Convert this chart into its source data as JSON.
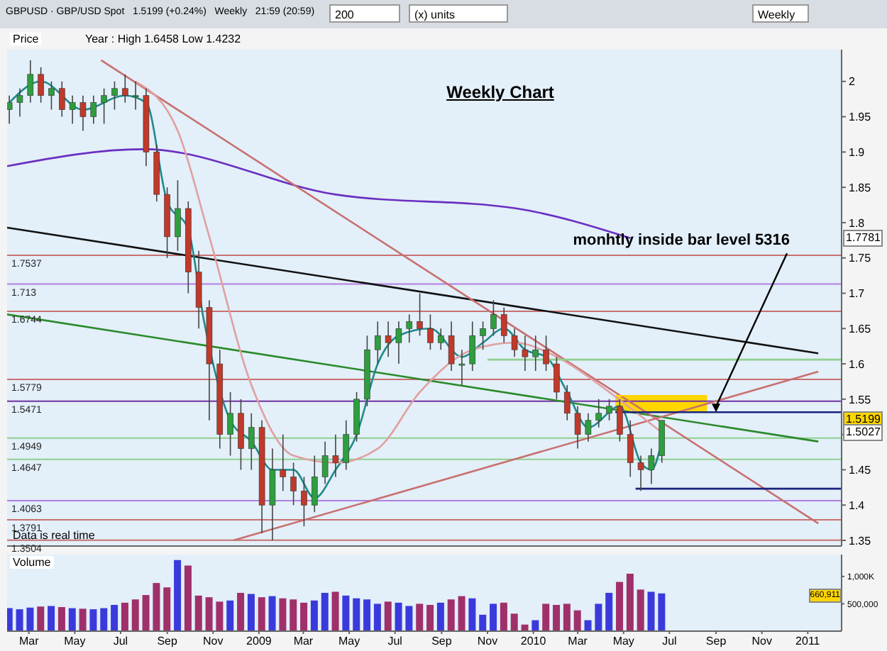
{
  "chart_data": [
    {
      "type": "candlestick",
      "title": "Weekly Chart",
      "subtitle": "GBPUSD · GBP/USD Spot   1.5199 (+0.24%)   Weekly   21:59 (20:59)",
      "x": [
        "2008-02-04",
        "2008-02-18",
        "2008-03-03",
        "2008-03-17",
        "2008-03-31",
        "2008-04-14",
        "2008-04-28",
        "2008-05-12",
        "2008-05-26",
        "2008-06-09",
        "2008-06-23",
        "2008-07-07",
        "2008-07-21",
        "2008-08-04",
        "2008-08-18",
        "2008-09-01",
        "2008-09-15",
        "2008-09-29",
        "2008-10-13",
        "2008-10-27",
        "2008-11-10",
        "2008-11-24",
        "2008-12-08",
        "2008-12-22",
        "2009-01-05",
        "2009-01-19",
        "2009-02-02",
        "2009-02-16",
        "2009-03-02",
        "2009-03-16",
        "2009-03-30",
        "2009-04-13",
        "2009-04-27",
        "2009-05-11",
        "2009-05-25",
        "2009-06-08",
        "2009-06-22",
        "2009-07-06",
        "2009-07-20",
        "2009-08-03",
        "2009-08-17",
        "2009-08-31",
        "2009-09-14",
        "2009-09-28",
        "2009-10-12",
        "2009-10-26",
        "2009-11-09",
        "2009-11-23",
        "2009-12-07",
        "2009-12-21",
        "2010-01-04",
        "2010-01-18",
        "2010-02-01",
        "2010-02-15",
        "2010-03-01",
        "2010-03-15",
        "2010-03-29",
        "2010-04-12",
        "2010-04-26",
        "2010-05-10",
        "2010-05-24",
        "2010-06-07",
        "2010-06-21"
      ],
      "ohlc": [
        [
          1.96,
          1.98,
          1.94,
          1.97
        ],
        [
          1.97,
          1.99,
          1.95,
          1.98
        ],
        [
          1.98,
          2.03,
          1.97,
          2.01
        ],
        [
          2.01,
          2.02,
          1.97,
          1.98
        ],
        [
          1.98,
          2.0,
          1.96,
          1.99
        ],
        [
          1.99,
          2.0,
          1.95,
          1.96
        ],
        [
          1.96,
          1.98,
          1.94,
          1.97
        ],
        [
          1.97,
          1.98,
          1.93,
          1.95
        ],
        [
          1.95,
          1.98,
          1.94,
          1.97
        ],
        [
          1.97,
          1.99,
          1.94,
          1.98
        ],
        [
          1.98,
          2.0,
          1.96,
          1.99
        ],
        [
          1.99,
          2.01,
          1.97,
          1.98
        ],
        [
          1.98,
          2.0,
          1.96,
          1.98
        ],
        [
          1.98,
          1.99,
          1.88,
          1.9
        ],
        [
          1.9,
          1.91,
          1.83,
          1.84
        ],
        [
          1.84,
          1.85,
          1.75,
          1.78
        ],
        [
          1.78,
          1.86,
          1.76,
          1.82
        ],
        [
          1.82,
          1.83,
          1.7,
          1.73
        ],
        [
          1.73,
          1.76,
          1.65,
          1.68
        ],
        [
          1.68,
          1.69,
          1.52,
          1.6
        ],
        [
          1.6,
          1.62,
          1.48,
          1.5
        ],
        [
          1.5,
          1.56,
          1.47,
          1.53
        ],
        [
          1.53,
          1.55,
          1.45,
          1.48
        ],
        [
          1.48,
          1.53,
          1.45,
          1.51
        ],
        [
          1.51,
          1.52,
          1.36,
          1.4
        ],
        [
          1.4,
          1.48,
          1.35,
          1.45
        ],
        [
          1.45,
          1.5,
          1.42,
          1.44
        ],
        [
          1.44,
          1.46,
          1.4,
          1.42
        ],
        [
          1.42,
          1.44,
          1.37,
          1.4
        ],
        [
          1.4,
          1.47,
          1.39,
          1.44
        ],
        [
          1.44,
          1.49,
          1.43,
          1.47
        ],
        [
          1.47,
          1.5,
          1.44,
          1.46
        ],
        [
          1.46,
          1.52,
          1.45,
          1.5
        ],
        [
          1.5,
          1.56,
          1.49,
          1.55
        ],
        [
          1.55,
          1.64,
          1.54,
          1.62
        ],
        [
          1.62,
          1.66,
          1.6,
          1.64
        ],
        [
          1.64,
          1.66,
          1.61,
          1.63
        ],
        [
          1.63,
          1.66,
          1.6,
          1.65
        ],
        [
          1.65,
          1.67,
          1.63,
          1.66
        ],
        [
          1.66,
          1.7,
          1.64,
          1.65
        ],
        [
          1.65,
          1.67,
          1.62,
          1.63
        ],
        [
          1.63,
          1.65,
          1.62,
          1.64
        ],
        [
          1.64,
          1.66,
          1.59,
          1.6
        ],
        [
          1.6,
          1.62,
          1.57,
          1.6
        ],
        [
          1.6,
          1.66,
          1.59,
          1.64
        ],
        [
          1.64,
          1.66,
          1.62,
          1.65
        ],
        [
          1.65,
          1.69,
          1.64,
          1.67
        ],
        [
          1.67,
          1.68,
          1.63,
          1.64
        ],
        [
          1.64,
          1.65,
          1.61,
          1.62
        ],
        [
          1.62,
          1.64,
          1.59,
          1.61
        ],
        [
          1.61,
          1.64,
          1.59,
          1.62
        ],
        [
          1.62,
          1.64,
          1.59,
          1.6
        ],
        [
          1.6,
          1.61,
          1.55,
          1.56
        ],
        [
          1.56,
          1.57,
          1.52,
          1.53
        ],
        [
          1.53,
          1.54,
          1.48,
          1.5
        ],
        [
          1.5,
          1.53,
          1.49,
          1.52
        ],
        [
          1.52,
          1.55,
          1.51,
          1.53
        ],
        [
          1.53,
          1.55,
          1.52,
          1.54
        ],
        [
          1.54,
          1.55,
          1.49,
          1.5
        ],
        [
          1.5,
          1.52,
          1.44,
          1.46
        ],
        [
          1.46,
          1.47,
          1.42,
          1.45
        ],
        [
          1.45,
          1.48,
          1.43,
          1.47
        ],
        [
          1.47,
          1.52,
          1.46,
          1.52
        ]
      ],
      "series": [
        {
          "type": "line",
          "color": "#6a2fc0",
          "x": [
            "2008-02-01",
            "2008-08-01",
            "2009-04-12",
            "2009-12-10",
            "2010-05-10"
          ],
          "values": [
            1.88,
            1.904,
            1.84,
            1.82,
            1.7781
          ]
        },
        {
          "type": "line",
          "color": "#111111",
          "x": [
            "2008-02-01",
            "2011-01-15"
          ],
          "values": [
            1.793,
            1.615
          ]
        },
        {
          "type": "line",
          "color": "#2a8a2a",
          "x": [
            "2008-02-01",
            "2011-01-15"
          ],
          "values": [
            1.67,
            1.49
          ]
        },
        {
          "type": "line",
          "color": "#c87070",
          "x": [
            "2008-06-05",
            "2011-01-15"
          ],
          "values": [
            2.03,
            1.374
          ]
        },
        {
          "type": "line",
          "color": "#c87070",
          "x": [
            "2008-11-28",
            "2011-01-15"
          ],
          "values": [
            1.35,
            1.589
          ]
        },
        {
          "type": "line",
          "color": "#1f8a8a",
          "x": [
            "2008-02-04",
            "2008-03-17",
            "2008-05-12",
            "2008-07-07",
            "2008-08-04",
            "2008-09-01",
            "2008-09-29",
            "2008-10-20",
            "2008-11-24",
            "2008-12-22",
            "2009-01-19",
            "2009-02-16",
            "2009-03-16",
            "2009-04-13",
            "2009-05-11",
            "2009-06-08",
            "2009-07-06",
            "2009-08-17",
            "2009-09-28",
            "2009-10-26",
            "2009-11-23",
            "2009-12-21",
            "2010-01-18",
            "2010-02-15",
            "2010-03-15",
            "2010-04-26",
            "2010-05-24",
            "2010-06-07",
            "2010-06-21"
          ],
          "values": [
            1.97,
            2.0,
            1.96,
            1.98,
            1.97,
            1.83,
            1.79,
            1.66,
            1.52,
            1.49,
            1.45,
            1.45,
            1.41,
            1.45,
            1.5,
            1.6,
            1.64,
            1.65,
            1.61,
            1.63,
            1.65,
            1.62,
            1.61,
            1.56,
            1.51,
            1.54,
            1.46,
            1.45,
            1.49
          ]
        },
        {
          "type": "line",
          "color": "#e0a0a0",
          "x": [
            "2008-07-21",
            "2008-09-15",
            "2008-10-27",
            "2008-12-22",
            "2009-02-16",
            "2009-04-13",
            "2009-06-08",
            "2009-08-03",
            "2009-10-12",
            "2009-12-07",
            "2010-02-01",
            "2010-04-12",
            "2010-06-21"
          ],
          "values": [
            2.0,
            1.93,
            1.78,
            1.57,
            1.47,
            1.46,
            1.48,
            1.56,
            1.62,
            1.63,
            1.61,
            1.56,
            1.5027
          ]
        },
        {
          "type": "line",
          "color": "#90d090",
          "x": [
            "2009-11-01",
            "2011-02-15"
          ],
          "values": [
            1.606,
            1.606
          ]
        },
        {
          "type": "line",
          "color": "#1a237e",
          "x": [
            "2010-04-20",
            "2011-02-15"
          ],
          "values": [
            1.5316,
            1.5316
          ]
        },
        {
          "type": "line",
          "color": "#1a237e",
          "x": [
            "2010-05-17",
            "2011-02-15"
          ],
          "values": [
            1.4232,
            1.4232
          ]
        },
        {
          "type": "line",
          "color": "#ffd600",
          "x": [
            "2010-04-20",
            "2010-08-20"
          ],
          "values": [
            1.555,
            1.555
          ],
          "lower": [
            1.532,
            1.532
          ],
          "upper": [
            1.555,
            1.555
          ]
        }
      ],
      "ref_lines": [
        {
          "axis": "y",
          "value": 1.7537,
          "label": "1.7537",
          "color": "#c87070"
        },
        {
          "axis": "y",
          "value": 1.713,
          "label": "1.713",
          "color": "#b080e0"
        },
        {
          "axis": "y",
          "value": 1.6744,
          "label": "1.6744",
          "color": "#c87070"
        },
        {
          "axis": "y",
          "value": 1.5779,
          "label": "1.5779",
          "color": "#c87070"
        },
        {
          "axis": "y",
          "value": 1.5471,
          "label": "1.5471",
          "color": "#7030a0"
        },
        {
          "axis": "y",
          "value": 1.4949,
          "label": "1.4949",
          "color": "#90d090"
        },
        {
          "axis": "y",
          "value": 1.4647,
          "label": "1.4647",
          "color": "#90d090"
        },
        {
          "axis": "y",
          "value": 1.4063,
          "label": "1.4063",
          "color": "#b080e0"
        },
        {
          "axis": "y",
          "value": 1.3791,
          "label": "1.3791",
          "color": "#c87070"
        },
        {
          "axis": "y",
          "value": 1.3504,
          "label": "1.3504",
          "color": "#c87070"
        }
      ],
      "annotations": [
        "Price",
        "Year : High 1.6458 Low 1.4232",
        "Data is real time",
        "200",
        "(x) units",
        "Weekly",
        {
          "text": "monhtly inside bar level 5316",
          "x": "2010-09-01",
          "y": 1.5316
        },
        {
          "text": "1.7781",
          "y": 1.7781
        },
        {
          "text": "1.5199",
          "y": 1.5199
        },
        {
          "text": "1.5027",
          "y": 1.5027
        }
      ],
      "xlim": [
        "2008-02-01",
        "2011-02-15"
      ],
      "ylim": [
        1.342,
        2.045
      ],
      "xticks": [
        "2008-03-01",
        "2008-05-01",
        "2008-07-01",
        "2008-09-01",
        "2008-11-01",
        "2009-01-01",
        "2009-03-01",
        "2009-05-01",
        "2009-07-01",
        "2009-09-01",
        "2009-11-01",
        "2010-01-01",
        "2010-03-01",
        "2010-05-01",
        "2010-07-01",
        "2010-09-01",
        "2010-11-01",
        "2011-01-01"
      ],
      "yticks": [
        1.35,
        1.4,
        1.45,
        {
          "value": 1.5,
          "label": null
        },
        1.55,
        1.6,
        1.65,
        1.7,
        1.75,
        1.8,
        1.85,
        1.9,
        1.95,
        2
      ],
      "tick_labels": "y"
    },
    {
      "type": "bar",
      "title": "Volume",
      "x": [
        "2008-02-04",
        "2008-02-18",
        "2008-03-03",
        "2008-03-17",
        "2008-03-31",
        "2008-04-14",
        "2008-04-28",
        "2008-05-12",
        "2008-05-26",
        "2008-06-09",
        "2008-06-23",
        "2008-07-07",
        "2008-07-21",
        "2008-08-04",
        "2008-08-18",
        "2008-09-01",
        "2008-09-15",
        "2008-09-29",
        "2008-10-13",
        "2008-10-27",
        "2008-11-10",
        "2008-11-24",
        "2008-12-08",
        "2008-12-22",
        "2009-01-05",
        "2009-01-19",
        "2009-02-02",
        "2009-02-16",
        "2009-03-02",
        "2009-03-16",
        "2009-03-30",
        "2009-04-13",
        "2009-04-27",
        "2009-05-11",
        "2009-05-25",
        "2009-06-08",
        "2009-06-22",
        "2009-07-06",
        "2009-07-20",
        "2009-08-03",
        "2009-08-17",
        "2009-08-31",
        "2009-09-14",
        "2009-09-28",
        "2009-10-12",
        "2009-10-26",
        "2009-11-09",
        "2009-11-23",
        "2009-12-07",
        "2009-12-21",
        "2010-01-04",
        "2010-01-18",
        "2010-02-01",
        "2010-02-15",
        "2010-03-01",
        "2010-03-15",
        "2010-03-29",
        "2010-04-12",
        "2010-04-26",
        "2010-05-10",
        "2010-05-24",
        "2010-06-07",
        "2010-06-21"
      ],
      "values": [
        420000,
        400000,
        430000,
        450000,
        460000,
        440000,
        420000,
        410000,
        400000,
        420000,
        480000,
        520000,
        580000,
        660000,
        880000,
        800000,
        1300000,
        1200000,
        650000,
        620000,
        540000,
        560000,
        700000,
        680000,
        620000,
        640000,
        600000,
        580000,
        520000,
        560000,
        700000,
        720000,
        650000,
        600000,
        580000,
        500000,
        540000,
        520000,
        460000,
        500000,
        480000,
        520000,
        580000,
        640000,
        600000,
        300000,
        500000,
        520000,
        320000,
        120000,
        200000,
        500000,
        480000,
        500000,
        380000,
        200000,
        500000,
        700000,
        900000,
        1050000,
        760000,
        720000,
        690000
      ],
      "colors": [
        "#3a3adc",
        "#3a3adc",
        "#3a3adc",
        "#a0306a",
        "#3a3adc",
        "#a0306a",
        "#3a3adc",
        "#a0306a",
        "#3a3adc",
        "#3a3adc",
        "#3a3adc",
        "#a0306a",
        "#a0306a",
        "#a0306a",
        "#a0306a",
        "#a0306a",
        "#3a3adc",
        "#a0306a",
        "#a0306a",
        "#a0306a",
        "#a0306a",
        "#3a3adc",
        "#a0306a",
        "#3a3adc",
        "#a0306a",
        "#3a3adc",
        "#a0306a",
        "#a0306a",
        "#a0306a",
        "#3a3adc",
        "#3a3adc",
        "#a0306a",
        "#3a3adc",
        "#3a3adc",
        "#3a3adc",
        "#3a3adc",
        "#a0306a",
        "#3a3adc",
        "#3a3adc",
        "#a0306a",
        "#a0306a",
        "#3a3adc",
        "#a0306a",
        "#a0306a",
        "#3a3adc",
        "#3a3adc",
        "#3a3adc",
        "#a0306a",
        "#a0306a",
        "#a0306a",
        "#3a3adc",
        "#a0306a",
        "#a0306a",
        "#a0306a",
        "#a0306a",
        "#3a3adc",
        "#3a3adc",
        "#3a3adc",
        "#a0306a",
        "#a0306a",
        "#a0306a",
        "#3a3adc",
        "#3a3adc"
      ],
      "annotations": [
        {
          "text": "660,911",
          "y": 660911
        }
      ],
      "xlim": [
        "2008-02-01",
        "2011-02-15"
      ],
      "ylim": [
        0,
        1400000
      ],
      "xticks": [
        {
          "value": "2008-03-01",
          "label": "Mar"
        },
        {
          "value": "2008-05-01",
          "label": "May"
        },
        {
          "value": "2008-07-01",
          "label": "Jul"
        },
        {
          "value": "2008-09-01",
          "label": "Sep"
        },
        {
          "value": "2008-11-01",
          "label": "Nov"
        },
        {
          "value": "2009-01-01",
          "label": "2009"
        },
        {
          "value": "2009-03-01",
          "label": "Mar"
        },
        {
          "value": "2009-05-01",
          "label": "May"
        },
        {
          "value": "2009-07-01",
          "label": "Jul"
        },
        {
          "value": "2009-09-01",
          "label": "Sep"
        },
        {
          "value": "2009-11-01",
          "label": "Nov"
        },
        {
          "value": "2010-01-01",
          "label": "2010"
        },
        {
          "value": "2010-03-01",
          "label": "Mar"
        },
        {
          "value": "2010-05-01",
          "label": "May"
        },
        {
          "value": "2010-07-01",
          "label": "Jul"
        },
        {
          "value": "2010-09-01",
          "label": "Sep"
        },
        {
          "value": "2010-11-01",
          "label": "Nov"
        },
        {
          "value": "2011-01-01",
          "label": "2011"
        }
      ],
      "yticks": [
        {
          "value": 500000,
          "label": "500,000"
        },
        {
          "value": 1000000,
          "label": "1,000K"
        }
      ]
    }
  ]
}
